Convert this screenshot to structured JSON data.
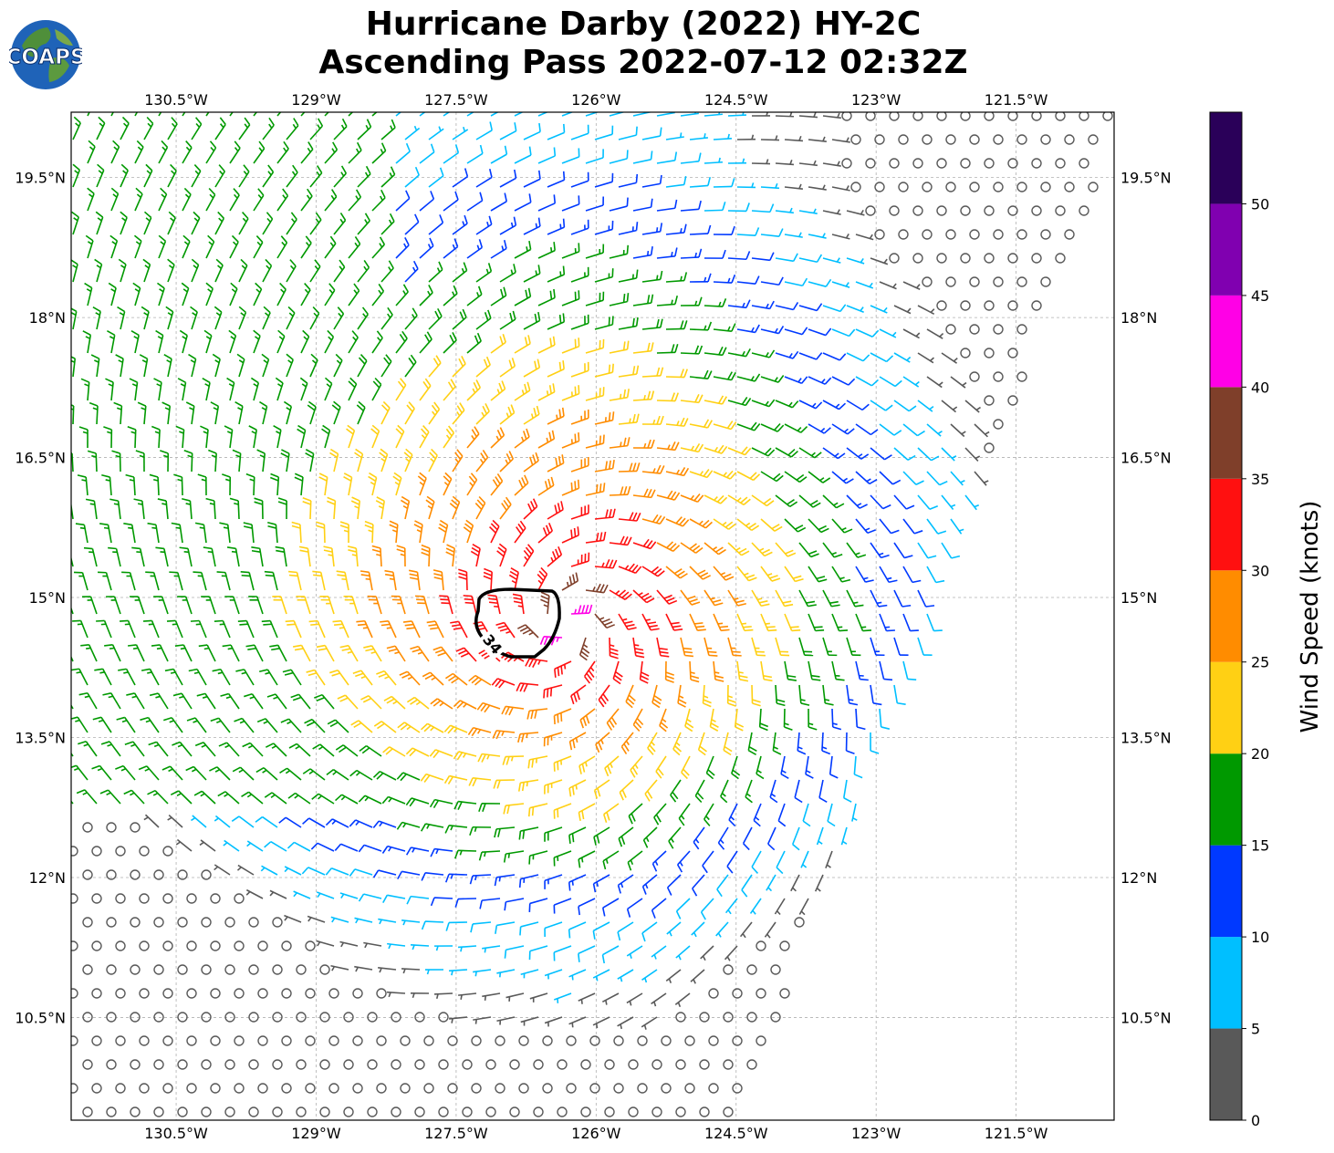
{
  "header": {
    "title_line1": "Hurricane Darby (2022) HY-2C",
    "title_line2": "Ascending Pass 2022-07-12 02:32Z",
    "logo_text": "COAPS"
  },
  "map": {
    "lon_ticks": [
      "130.5°W",
      "129°W",
      "127.5°W",
      "126°W",
      "124.5°W",
      "123°W",
      "121.5°W"
    ],
    "lon_values": [
      -130.5,
      -129,
      -127.5,
      -126,
      -124.5,
      -123,
      -121.5
    ],
    "lat_ticks": [
      "19.5°N",
      "18°N",
      "16.5°N",
      "15°N",
      "13.5°N",
      "12°N",
      "10.5°N"
    ],
    "lat_values": [
      19.5,
      18,
      16.5,
      15,
      13.5,
      12,
      10.5
    ],
    "lon_range": [
      -131.625,
      -120.45
    ],
    "lat_range": [
      9.4,
      20.2
    ],
    "storm_center": {
      "lon": -126.3,
      "lat": 14.72
    },
    "contour_label": "34",
    "grid": "on"
  },
  "colorbar": {
    "label": "Wind Speed (knots)",
    "tick_labels": [
      "0",
      "5",
      "10",
      "15",
      "20",
      "25",
      "30",
      "35",
      "40",
      "45",
      "50"
    ],
    "bounds": [
      0,
      5,
      10,
      15,
      20,
      25,
      30,
      35,
      40,
      45,
      50,
      55
    ],
    "colors": [
      "#595959",
      "#00bfff",
      "#0039ff",
      "#009900",
      "#ffd014",
      "#ff8c00",
      "#ff1010",
      "#7f3f2a",
      "#ff00e6",
      "#8000b0",
      "#2a0059"
    ]
  }
}
